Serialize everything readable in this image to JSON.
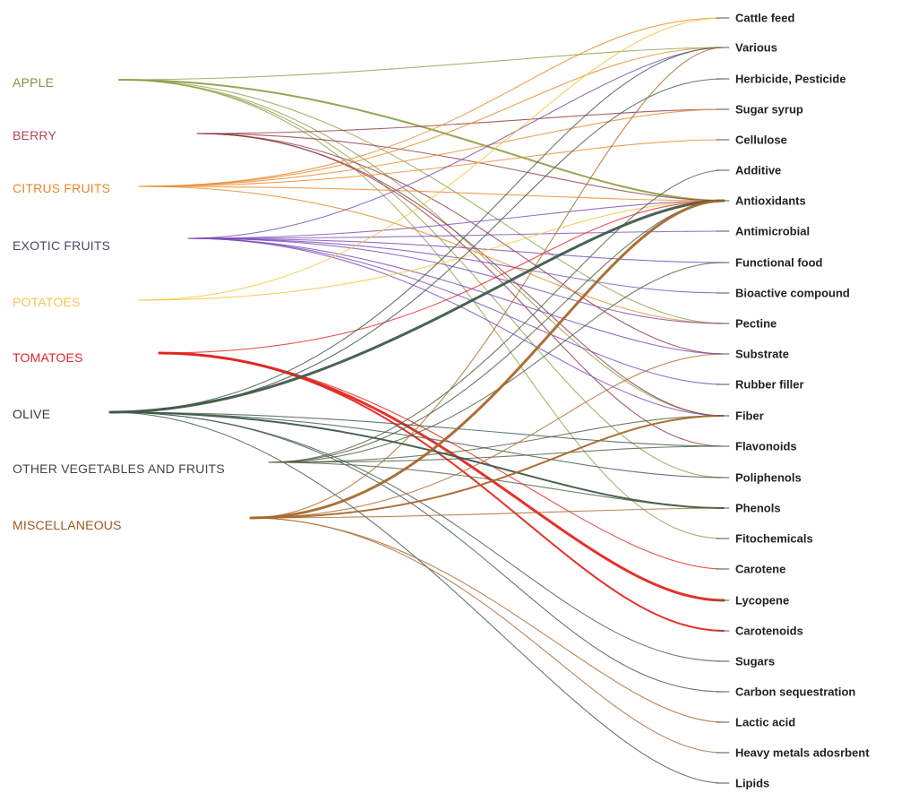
{
  "sources": [
    {
      "id": "apple",
      "label": "APPLE",
      "color": "#7b9a3d"
    },
    {
      "id": "berry",
      "label": "BERRY",
      "color": "#b0455a"
    },
    {
      "id": "citrus",
      "label": "CITRUS  FRUITS",
      "color": "#e9862a"
    },
    {
      "id": "exotic",
      "label": "EXOTIC FRUITS",
      "color": "#4a4a62"
    },
    {
      "id": "potatoes",
      "label": "POTATOES",
      "color": "#f3c64a"
    },
    {
      "id": "tomatoes",
      "label": "TOMATOES",
      "color": "#e0262a"
    },
    {
      "id": "olive",
      "label": "OLIVE",
      "color": "#2f3a35"
    },
    {
      "id": "other",
      "label": "OTHER VEGETABLES AND FRUITS",
      "color": "#3a4a3a"
    },
    {
      "id": "misc",
      "label": "MISCELLANEOUS",
      "color": "#9a5a22"
    }
  ],
  "source_line_colors": {
    "apple": "#8ea14a",
    "berry": "#8e3a45",
    "citrus": "#e98a2a",
    "exotic": "#7b4bb8",
    "potatoes": "#f1c53a",
    "tomatoes": "#e3261f",
    "olive": "#3f5a4a",
    "other": "#4e5e3e",
    "misc": "#a8672a"
  },
  "targets": [
    "Cattle feed",
    "Various",
    "Herbicide, Pesticide",
    "Sugar syrup",
    "Cellulose",
    "Additive",
    "Antioxidants",
    "Antimicrobial",
    "Functional food",
    "Bioactive compound",
    "Pectine",
    "Substrate",
    "Rubber filler",
    "Fiber",
    "Flavonoids",
    "Poliphenols",
    "Phenols",
    "Fitochemicals",
    "Carotene",
    "Lycopene",
    "Carotenoids",
    "Sugars",
    "Carbon sequestration",
    "Lactic acid",
    "Heavy metals adosrbent",
    "Lipids"
  ],
  "links": [
    {
      "source": "apple",
      "target": "Various",
      "weight": 1
    },
    {
      "source": "apple",
      "target": "Antioxidants",
      "weight": 2
    },
    {
      "source": "apple",
      "target": "Pectine",
      "weight": 1
    },
    {
      "source": "apple",
      "target": "Fiber",
      "weight": 1
    },
    {
      "source": "apple",
      "target": "Poliphenols",
      "weight": 1
    },
    {
      "source": "apple",
      "target": "Fitochemicals",
      "weight": 1
    },
    {
      "source": "berry",
      "target": "Sugar syrup",
      "weight": 1
    },
    {
      "source": "berry",
      "target": "Antioxidants",
      "weight": 1
    },
    {
      "source": "berry",
      "target": "Substrate",
      "weight": 1
    },
    {
      "source": "berry",
      "target": "Fiber",
      "weight": 1
    },
    {
      "source": "berry",
      "target": "Flavonoids",
      "weight": 1
    },
    {
      "source": "citrus",
      "target": "Cattle feed",
      "weight": 1
    },
    {
      "source": "citrus",
      "target": "Sugar syrup",
      "weight": 1
    },
    {
      "source": "citrus",
      "target": "Cellulose",
      "weight": 1
    },
    {
      "source": "citrus",
      "target": "Antioxidants",
      "weight": 1
    },
    {
      "source": "citrus",
      "target": "Pectine",
      "weight": 1
    },
    {
      "source": "citrus",
      "target": "Various",
      "weight": 1
    },
    {
      "source": "exotic",
      "target": "Various",
      "weight": 1
    },
    {
      "source": "exotic",
      "target": "Antioxidants",
      "weight": 1
    },
    {
      "source": "exotic",
      "target": "Antimicrobial",
      "weight": 1
    },
    {
      "source": "exotic",
      "target": "Functional food",
      "weight": 1
    },
    {
      "source": "exotic",
      "target": "Bioactive compound",
      "weight": 1
    },
    {
      "source": "exotic",
      "target": "Pectine",
      "weight": 1
    },
    {
      "source": "exotic",
      "target": "Substrate",
      "weight": 1
    },
    {
      "source": "exotic",
      "target": "Rubber filler",
      "weight": 1
    },
    {
      "source": "exotic",
      "target": "Fiber",
      "weight": 1
    },
    {
      "source": "potatoes",
      "target": "Cattle feed",
      "weight": 1
    },
    {
      "source": "potatoes",
      "target": "Antioxidants",
      "weight": 1
    },
    {
      "source": "tomatoes",
      "target": "Antioxidants",
      "weight": 1
    },
    {
      "source": "tomatoes",
      "target": "Carotene",
      "weight": 1
    },
    {
      "source": "tomatoes",
      "target": "Lycopene",
      "weight": 3
    },
    {
      "source": "tomatoes",
      "target": "Carotenoids",
      "weight": 2
    },
    {
      "source": "olive",
      "target": "Various",
      "weight": 1
    },
    {
      "source": "olive",
      "target": "Herbicide, Pesticide",
      "weight": 1
    },
    {
      "source": "olive",
      "target": "Antioxidants",
      "weight": 3
    },
    {
      "source": "olive",
      "target": "Flavonoids",
      "weight": 1
    },
    {
      "source": "olive",
      "target": "Poliphenols",
      "weight": 1
    },
    {
      "source": "olive",
      "target": "Phenols",
      "weight": 2
    },
    {
      "source": "olive",
      "target": "Sugars",
      "weight": 1
    },
    {
      "source": "olive",
      "target": "Carbon sequestration",
      "weight": 1
    },
    {
      "source": "olive",
      "target": "Lipids",
      "weight": 1
    },
    {
      "source": "other",
      "target": "Additive",
      "weight": 1
    },
    {
      "source": "other",
      "target": "Antioxidants",
      "weight": 1
    },
    {
      "source": "other",
      "target": "Functional food",
      "weight": 1
    },
    {
      "source": "other",
      "target": "Fiber",
      "weight": 1
    },
    {
      "source": "other",
      "target": "Flavonoids",
      "weight": 1
    },
    {
      "source": "other",
      "target": "Phenols",
      "weight": 1
    },
    {
      "source": "misc",
      "target": "Various",
      "weight": 1
    },
    {
      "source": "misc",
      "target": "Antioxidants",
      "weight": 3
    },
    {
      "source": "misc",
      "target": "Substrate",
      "weight": 1
    },
    {
      "source": "misc",
      "target": "Fiber",
      "weight": 2
    },
    {
      "source": "misc",
      "target": "Phenols",
      "weight": 1
    },
    {
      "source": "misc",
      "target": "Lactic acid",
      "weight": 1
    },
    {
      "source": "misc",
      "target": "Heavy metals adosrbent",
      "weight": 1
    }
  ]
}
